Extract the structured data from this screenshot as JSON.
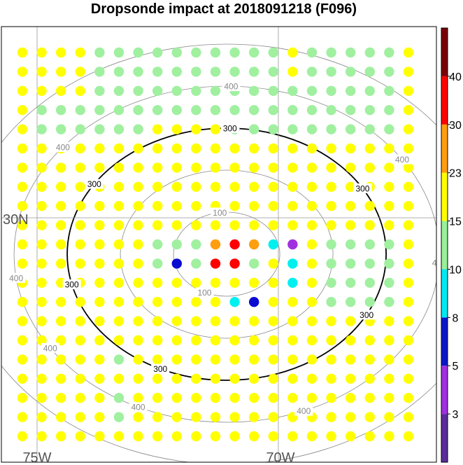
{
  "title": "Dropsonde impact at 2018091218 (F096)",
  "chart_data": {
    "type": "scatter",
    "title": "Dropsonde impact at 2018091218 (F096)",
    "map": {
      "lat_labels": [
        {
          "text": "30N",
          "lat": 30
        }
      ],
      "lon_labels": [
        {
          "text": "75W",
          "lon": -75
        },
        {
          "text": "70W",
          "lon": -70
        }
      ],
      "gridlines": {
        "lats": [
          30
        ],
        "lons": [
          -75,
          -70
        ]
      },
      "grid": true
    },
    "range_rings": {
      "center_index": {
        "row": 10,
        "col": 11
      },
      "rings": [
        {
          "value": 100,
          "label": "100",
          "color": "#888888"
        },
        {
          "value": 200,
          "label": "",
          "color": "#888888"
        },
        {
          "value": 300,
          "label": "300",
          "color": "#000000"
        },
        {
          "value": 400,
          "label": "400",
          "color": "#888888"
        },
        {
          "value": 500,
          "label": "",
          "color": "#888888"
        }
      ]
    },
    "colorbar": {
      "ticks": [
        3,
        5,
        8,
        10,
        15,
        23,
        30,
        40
      ],
      "colors": [
        "#5a2d9a",
        "#a030e0",
        "#0a16c8",
        "#00e8f0",
        "#98f098",
        "#ffff00",
        "#ff9e0e",
        "#ff0000",
        "#7a0008"
      ]
    },
    "category_colors": {
      "Y": "#ffff00",
      "G": "#a0f0a0",
      "C": "#00f0f0",
      "B": "#0a0ad0",
      "P": "#a030e0",
      "O": "#ff9e0e",
      "R": "#ff0000"
    },
    "grid_rows": [
      "YYYYGGGGGGGGGGYGGGGGY",
      "YYYYGGGGGGGGGGYGGGGGY",
      "YYYYGGGGGGGGGGGGGGGGY",
      "YGGGGGGGGGGGGGGGGGGGY",
      "YGGGGGGYYYYGGGGGGGGGY",
      "YYYYYYYYYYYYYYYYYYYYY",
      "YYYYYYYYYYYYYYYYYYYYY",
      "YYYYYYYYYYYYYYYYYYYYY",
      "YYYYYYYYYYYYYYYYYYYYY",
      "YYYYYYYYYYYYYYYYYYYYY",
      "YYYYYYYGGGOROCPYGGGGY",
      "YYYYYYYGBGRRGYCYGGGGY",
      "YYYYYYYYYYYYYYCYGGGGY",
      "YYYYYYYYYYYCBYYYGGGGY",
      "YYYYYYYYYYYYYYYYYYYYY",
      "YYYYYYYYYYYYYYYYYYYYY",
      "YYYYYGYYYYYYYYYYYYYYY",
      "YYYYYYYYYYYYYYYYYYYYY",
      "YYYYYGYYYYYYYYYYYYYYY",
      "YYYYYGYYYYYYYYYYYYYYY",
      "YYYYYYYYYYYYYYYYYYYYY"
    ]
  }
}
